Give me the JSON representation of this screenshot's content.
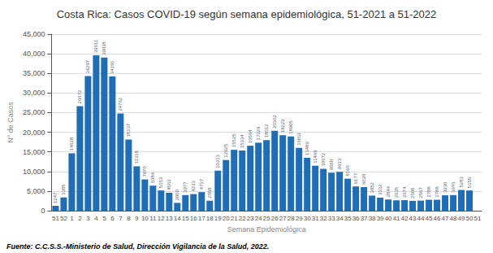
{
  "chart_data": {
    "type": "bar",
    "title": "Costa Rica: Casos COVID-19 según semana epidemiológica, 51-2021 a 51-2022",
    "xlabel": "Semana Epidemiológica",
    "ylabel": "N° de Casos",
    "footnote": "Fuente: C.C.S.S.-Ministerio de Salud, Dirección Vigilancia de la Salud, 2022.",
    "color": "#1f6db5",
    "categories": [
      "51",
      "52",
      "1",
      "2",
      "3",
      "4",
      "5",
      "6",
      "7",
      "8",
      "9",
      "10",
      "11",
      "12",
      "13",
      "14",
      "15",
      "16",
      "17",
      "18",
      "19",
      "20",
      "21",
      "22",
      "23",
      "24",
      "25",
      "26",
      "27",
      "28",
      "29",
      "30",
      "31",
      "32",
      "33",
      "34",
      "35",
      "36",
      "37",
      "38",
      "39",
      "40",
      "41",
      "42",
      "43",
      "44",
      "45",
      "46",
      "47",
      "48",
      "49",
      "50",
      "51"
    ],
    "values": [
      1247,
      3385,
      14628,
      26672,
      34297,
      39611,
      39038,
      34191,
      24762,
      18137,
      11318,
      7970,
      6384,
      5153,
      4563,
      2000,
      3977,
      4233,
      4737,
      2558,
      10213,
      12925,
      15525,
      15334,
      16564,
      17329,
      18012,
      20362,
      19223,
      18905,
      16011,
      13489,
      11469,
      10672,
      9680,
      9913,
      8166,
      6177,
      6020,
      3852,
      3332,
      2844,
      2635,
      2674,
      2508,
      2567,
      2788,
      2788,
      3930,
      3976,
      5283,
      5155,
      0
    ],
    "data_labels": true,
    "value_labels": [
      "1247",
      "3385",
      "14628",
      "26672",
      "34297",
      "39611",
      "39038",
      "34191",
      "24762",
      "18137",
      "11318",
      "7970",
      "6384",
      "5153",
      "4563",
      "2000",
      "3977",
      "4233",
      "4737",
      "2558",
      "10213",
      "12925",
      "15525",
      "15334",
      "16564",
      "17329",
      "18012",
      "20362",
      "19223",
      "18905",
      "16011",
      "13489",
      "11469",
      "10672",
      "9680",
      "9913",
      "8166",
      "6177",
      "6020",
      "3852",
      "3332",
      "2844",
      "2635",
      "2674",
      "2508",
      "2567",
      "2788",
      "2788",
      "3930",
      "3976",
      "5283",
      "5155",
      null
    ],
    "ylim": [
      0,
      45000
    ],
    "yticks": [
      0,
      {
        "value": 5000,
        "label": "5,000"
      },
      {
        "value": 10000,
        "label": "10,000"
      },
      {
        "value": 15000,
        "label": "15,000"
      },
      {
        "value": 20000,
        "label": "20,000"
      },
      {
        "value": 25000,
        "label": "25,000"
      },
      {
        "value": 30000,
        "label": "30,000"
      },
      {
        "value": 35000,
        "label": "35,000"
      },
      {
        "value": 40000,
        "label": "40,000"
      },
      {
        "value": 45000,
        "label": "45,000"
      }
    ],
    "grid": true
  }
}
